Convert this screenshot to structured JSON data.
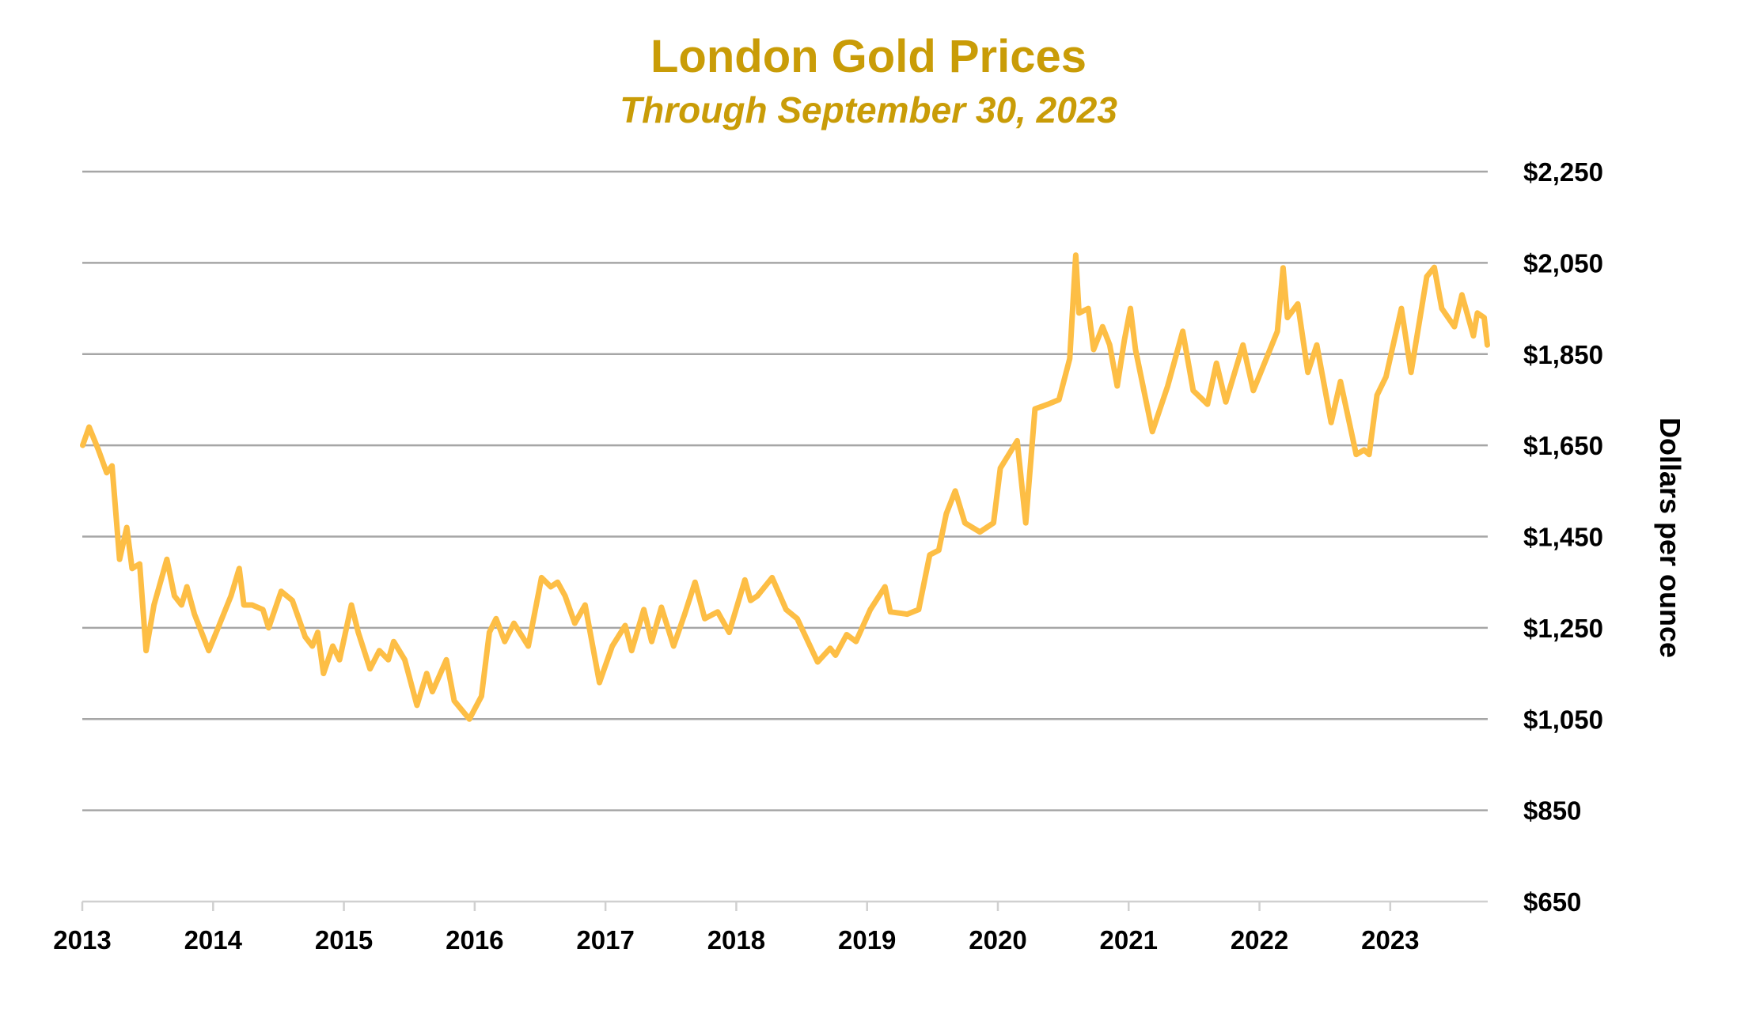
{
  "chart_data": {
    "type": "line",
    "title": "London Gold Prices",
    "subtitle": "Through September 30, 2023",
    "xlabel": "",
    "ylabel": "Dollars per ounce",
    "ylim": [
      650,
      2250
    ],
    "xlim": [
      "2013-01-01",
      "2023-09-30"
    ],
    "grid": true,
    "line_color": "#FDBE45",
    "title_color": "#C99C07",
    "y_ticks": [
      "$650",
      "$850",
      "$1,050",
      "$1,250",
      "$1,450",
      "$1,650",
      "$1,850",
      "$2,050",
      "$2,250"
    ],
    "y_tick_values": [
      650,
      850,
      1050,
      1250,
      1450,
      1650,
      1850,
      2050,
      2250
    ],
    "x_ticks": [
      "2013",
      "2014",
      "2015",
      "2016",
      "2017",
      "2018",
      "2019",
      "2020",
      "2021",
      "2022",
      "2023"
    ],
    "series": [
      {
        "points": [
          [
            "2013-01-02",
            1650
          ],
          [
            "2013-01-20",
            1690
          ],
          [
            "2013-02-15",
            1640
          ],
          [
            "2013-03-10",
            1590
          ],
          [
            "2013-03-25",
            1605
          ],
          [
            "2013-04-15",
            1400
          ],
          [
            "2013-05-05",
            1470
          ],
          [
            "2013-05-20",
            1380
          ],
          [
            "2013-06-10",
            1390
          ],
          [
            "2013-06-28",
            1200
          ],
          [
            "2013-07-20",
            1300
          ],
          [
            "2013-08-25",
            1400
          ],
          [
            "2013-09-15",
            1320
          ],
          [
            "2013-10-05",
            1300
          ],
          [
            "2013-10-20",
            1340
          ],
          [
            "2013-11-10",
            1280
          ],
          [
            "2013-12-20",
            1200
          ],
          [
            "2014-01-15",
            1250
          ],
          [
            "2014-02-20",
            1320
          ],
          [
            "2014-03-15",
            1380
          ],
          [
            "2014-03-28",
            1300
          ],
          [
            "2014-04-20",
            1300
          ],
          [
            "2014-05-20",
            1290
          ],
          [
            "2014-06-05",
            1250
          ],
          [
            "2014-07-10",
            1330
          ],
          [
            "2014-08-10",
            1310
          ],
          [
            "2014-09-15",
            1230
          ],
          [
            "2014-10-05",
            1210
          ],
          [
            "2014-10-20",
            1240
          ],
          [
            "2014-11-05",
            1150
          ],
          [
            "2014-12-01",
            1210
          ],
          [
            "2014-12-20",
            1180
          ],
          [
            "2015-01-22",
            1300
          ],
          [
            "2015-02-10",
            1240
          ],
          [
            "2015-03-15",
            1160
          ],
          [
            "2015-04-10",
            1200
          ],
          [
            "2015-05-05",
            1180
          ],
          [
            "2015-05-20",
            1220
          ],
          [
            "2015-06-20",
            1180
          ],
          [
            "2015-07-24",
            1080
          ],
          [
            "2015-08-20",
            1150
          ],
          [
            "2015-09-05",
            1110
          ],
          [
            "2015-10-14",
            1180
          ],
          [
            "2015-11-05",
            1090
          ],
          [
            "2015-12-17",
            1050
          ],
          [
            "2016-01-20",
            1100
          ],
          [
            "2016-02-11",
            1240
          ],
          [
            "2016-03-01",
            1270
          ],
          [
            "2016-03-25",
            1220
          ],
          [
            "2016-04-20",
            1260
          ],
          [
            "2016-05-30",
            1210
          ],
          [
            "2016-07-06",
            1360
          ],
          [
            "2016-08-01",
            1340
          ],
          [
            "2016-08-20",
            1350
          ],
          [
            "2016-09-10",
            1320
          ],
          [
            "2016-10-07",
            1260
          ],
          [
            "2016-11-05",
            1300
          ],
          [
            "2016-12-15",
            1130
          ],
          [
            "2017-01-20",
            1210
          ],
          [
            "2017-02-25",
            1255
          ],
          [
            "2017-03-15",
            1200
          ],
          [
            "2017-04-18",
            1290
          ],
          [
            "2017-05-10",
            1220
          ],
          [
            "2017-06-06",
            1295
          ],
          [
            "2017-07-10",
            1210
          ],
          [
            "2017-08-10",
            1280
          ],
          [
            "2017-09-08",
            1350
          ],
          [
            "2017-10-05",
            1270
          ],
          [
            "2017-11-10",
            1285
          ],
          [
            "2017-12-12",
            1240
          ],
          [
            "2018-01-25",
            1355
          ],
          [
            "2018-02-10",
            1310
          ],
          [
            "2018-03-01",
            1320
          ],
          [
            "2018-04-11",
            1360
          ],
          [
            "2018-05-20",
            1290
          ],
          [
            "2018-06-20",
            1270
          ],
          [
            "2018-07-20",
            1220
          ],
          [
            "2018-08-16",
            1175
          ],
          [
            "2018-09-20",
            1205
          ],
          [
            "2018-10-05",
            1190
          ],
          [
            "2018-11-05",
            1235
          ],
          [
            "2018-12-01",
            1220
          ],
          [
            "2019-01-10",
            1290
          ],
          [
            "2019-02-20",
            1340
          ],
          [
            "2019-03-07",
            1285
          ],
          [
            "2019-04-23",
            1280
          ],
          [
            "2019-05-25",
            1290
          ],
          [
            "2019-06-25",
            1410
          ],
          [
            "2019-07-20",
            1420
          ],
          [
            "2019-08-10",
            1500
          ],
          [
            "2019-09-04",
            1550
          ],
          [
            "2019-10-01",
            1480
          ],
          [
            "2019-11-12",
            1460
          ],
          [
            "2019-12-20",
            1480
          ],
          [
            "2020-01-08",
            1600
          ],
          [
            "2020-02-24",
            1660
          ],
          [
            "2020-03-19",
            1480
          ],
          [
            "2020-04-14",
            1730
          ],
          [
            "2020-05-20",
            1740
          ],
          [
            "2020-06-20",
            1750
          ],
          [
            "2020-07-20",
            1840
          ],
          [
            "2020-08-06",
            2067
          ],
          [
            "2020-08-15",
            1940
          ],
          [
            "2020-09-10",
            1950
          ],
          [
            "2020-09-25",
            1860
          ],
          [
            "2020-10-20",
            1910
          ],
          [
            "2020-11-09",
            1870
          ],
          [
            "2020-11-30",
            1780
          ],
          [
            "2020-12-20",
            1880
          ],
          [
            "2021-01-06",
            1950
          ],
          [
            "2021-01-20",
            1860
          ],
          [
            "2021-03-08",
            1680
          ],
          [
            "2021-04-20",
            1780
          ],
          [
            "2021-06-01",
            1900
          ],
          [
            "2021-06-30",
            1770
          ],
          [
            "2021-08-09",
            1740
          ],
          [
            "2021-09-03",
            1830
          ],
          [
            "2021-09-29",
            1745
          ],
          [
            "2021-11-16",
            1870
          ],
          [
            "2021-12-15",
            1770
          ],
          [
            "2022-01-20",
            1840
          ],
          [
            "2022-02-20",
            1900
          ],
          [
            "2022-03-08",
            2039
          ],
          [
            "2022-03-20",
            1930
          ],
          [
            "2022-04-18",
            1960
          ],
          [
            "2022-05-16",
            1810
          ],
          [
            "2022-06-10",
            1870
          ],
          [
            "2022-07-20",
            1700
          ],
          [
            "2022-08-15",
            1790
          ],
          [
            "2022-09-28",
            1630
          ],
          [
            "2022-10-20",
            1640
          ],
          [
            "2022-11-03",
            1630
          ],
          [
            "2022-11-25",
            1760
          ],
          [
            "2022-12-20",
            1800
          ],
          [
            "2023-02-01",
            1950
          ],
          [
            "2023-02-28",
            1810
          ],
          [
            "2023-04-13",
            2020
          ],
          [
            "2023-05-04",
            2040
          ],
          [
            "2023-05-25",
            1950
          ],
          [
            "2023-06-29",
            1910
          ],
          [
            "2023-07-20",
            1980
          ],
          [
            "2023-08-21",
            1890
          ],
          [
            "2023-09-01",
            1940
          ],
          [
            "2023-09-20",
            1930
          ],
          [
            "2023-09-29",
            1870
          ]
        ]
      }
    ]
  }
}
